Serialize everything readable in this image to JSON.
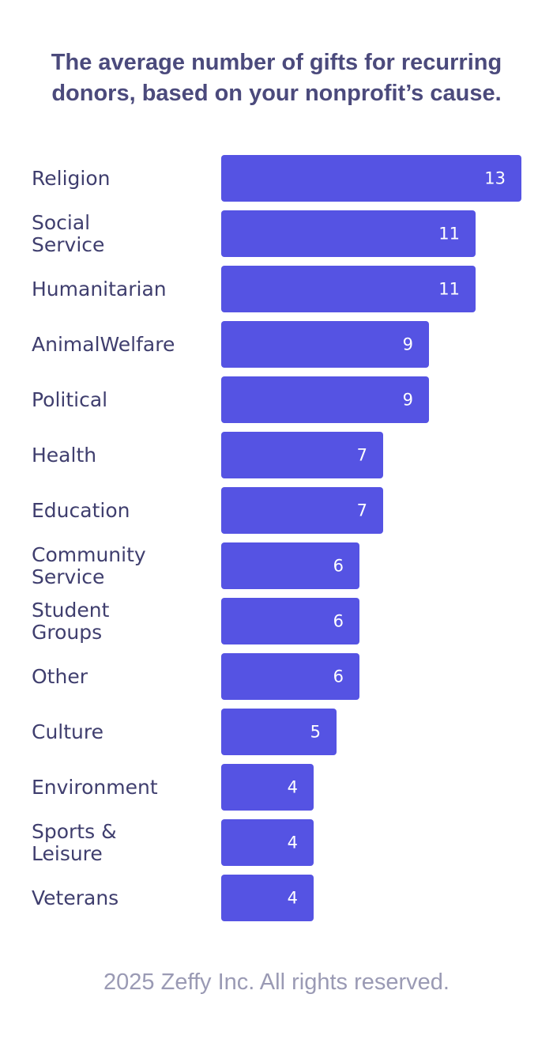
{
  "chart_data": {
    "type": "bar",
    "orientation": "horizontal",
    "title": "The average number of gifts for recurring donors, based on your nonprofit’s cause.",
    "categories": [
      [
        "Religion"
      ],
      [
        "Social",
        "Service"
      ],
      [
        "Humanitarian"
      ],
      [
        "AnimalWelfare"
      ],
      [
        "Political"
      ],
      [
        "Health"
      ],
      [
        "Education"
      ],
      [
        "Community",
        "Service"
      ],
      [
        "Student",
        "Groups"
      ],
      [
        "Other"
      ],
      [
        "Culture"
      ],
      [
        "Environment"
      ],
      [
        "Sports &",
        "Leisure"
      ],
      [
        "Veterans"
      ]
    ],
    "values": [
      13,
      11,
      11,
      9,
      9,
      7,
      7,
      6,
      6,
      6,
      5,
      4,
      4,
      4
    ],
    "xlim": [
      0,
      13
    ],
    "grid": false,
    "legend": "none",
    "bar_color": "#5553e3",
    "value_label_color": "#ffffff",
    "category_label_color": "#3f3e6e"
  },
  "footer": {
    "text": "2025 Zeffy Inc. All rights reserved."
  }
}
